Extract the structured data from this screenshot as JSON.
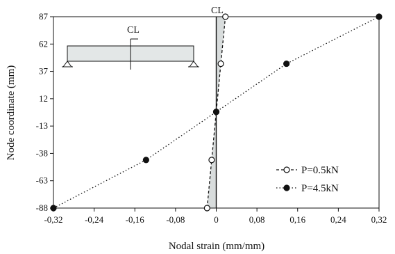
{
  "chart_data": {
    "type": "line",
    "title": "",
    "xlabel": "Nodal strain (mm/mm)",
    "ylabel": "Node coordinate (mm)",
    "xlim": [
      -0.32,
      0.32
    ],
    "ylim": [
      -88,
      87
    ],
    "x_ticks": [
      -0.32,
      -0.24,
      -0.16,
      -0.08,
      0,
      0.08,
      0.16,
      0.24,
      0.32
    ],
    "x_tick_labels": [
      "-0,32",
      "-0,24",
      "-0,16",
      "-0,08",
      "0",
      "0,08",
      "0,16",
      "0,24",
      "0,32"
    ],
    "y_ticks": [
      87,
      62,
      37,
      12,
      -13,
      -38,
      -63,
      -88
    ],
    "y_tick_labels": [
      "87",
      "62",
      "37",
      "12",
      "-13",
      "-38",
      "-63",
      "-88"
    ],
    "grid": false,
    "legend_position": "bottom-right",
    "annotation_cl": "CL",
    "series": [
      {
        "name": "P=0.5kN",
        "marker": "open-circle",
        "line_style": "dashed",
        "points": [
          {
            "x": -0.018,
            "y": -88
          },
          {
            "x": -0.009,
            "y": -44
          },
          {
            "x": 0.0,
            "y": 0
          },
          {
            "x": 0.009,
            "y": 44
          },
          {
            "x": 0.018,
            "y": 87
          }
        ]
      },
      {
        "name": "P=4.5kN",
        "marker": "filled-circle",
        "line_style": "dotted",
        "points": [
          {
            "x": -0.32,
            "y": -88
          },
          {
            "x": -0.138,
            "y": -44
          },
          {
            "x": 0.0,
            "y": 0
          },
          {
            "x": 0.138,
            "y": 44
          },
          {
            "x": 0.32,
            "y": 87
          }
        ]
      }
    ],
    "inset": {
      "label": "CL",
      "description_items": [
        "beam",
        "left-support",
        "right-support",
        "centerline"
      ]
    }
  },
  "colors": {
    "line": "#111111",
    "shade": "#d8dcdc",
    "beam_fill": "#e3e7e7"
  }
}
